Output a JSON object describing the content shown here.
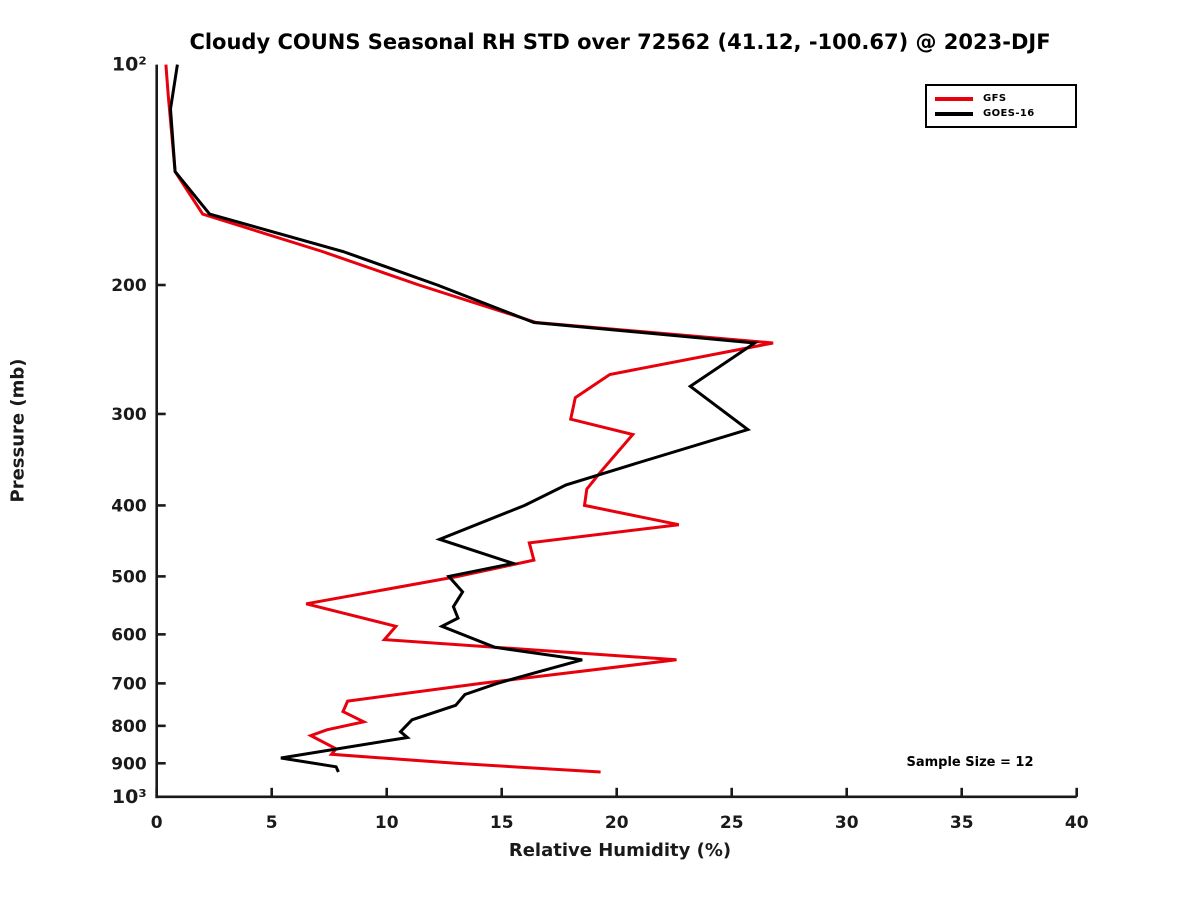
{
  "title": "Cloudy COUNS Seasonal RH STD over 72562 (41.12, -100.67) @ 2023-DJF",
  "annotation": "Sample Size = 12",
  "legend": {
    "entries": [
      {
        "label": "GFS",
        "color": "#e8000d"
      },
      {
        "label": "GOES-16",
        "color": "#000000"
      }
    ]
  },
  "chart_data": {
    "type": "line",
    "title": "Cloudy COUNS Seasonal RH STD over 72562 (41.12, -100.67) @ 2023-DJF",
    "xlabel": "Relative Humidity (%)",
    "ylabel": "Pressure (mb)",
    "xlim": [
      0,
      40
    ],
    "xticks": [
      0,
      5,
      10,
      15,
      20,
      25,
      30,
      35,
      40
    ],
    "ylim": [
      100,
      1000
    ],
    "yscale": "log",
    "yticks": [
      100,
      200,
      300,
      400,
      500,
      600,
      700,
      800,
      900,
      1000
    ],
    "ytick_labels": [
      "10²",
      "200",
      "300",
      "400",
      "500",
      "600",
      "700",
      "800",
      "900",
      "10³"
    ],
    "grid": false,
    "legend_position": "top-right",
    "annotation": "Sample Size = 12",
    "series": [
      {
        "name": "GFS",
        "color": "#e8000d",
        "points_format": "[pressure_mb, rh_percent]",
        "points": [
          [
            100,
            0.4
          ],
          [
            110,
            0.5
          ],
          [
            140,
            0.8
          ],
          [
            160,
            2.0
          ],
          [
            180,
            7.2
          ],
          [
            200,
            11.4
          ],
          [
            225,
            16.5
          ],
          [
            240,
            26.8
          ],
          [
            265,
            19.7
          ],
          [
            285,
            18.2
          ],
          [
            305,
            18.0
          ],
          [
            320,
            20.7
          ],
          [
            360,
            19.3
          ],
          [
            380,
            18.7
          ],
          [
            400,
            18.6
          ],
          [
            425,
            22.7
          ],
          [
            450,
            16.2
          ],
          [
            475,
            16.4
          ],
          [
            500,
            13.1
          ],
          [
            545,
            6.5
          ],
          [
            585,
            10.4
          ],
          [
            610,
            9.9
          ],
          [
            650,
            22.6
          ],
          [
            700,
            14.1
          ],
          [
            740,
            8.3
          ],
          [
            765,
            8.1
          ],
          [
            790,
            9.0
          ],
          [
            810,
            7.4
          ],
          [
            825,
            6.7
          ],
          [
            860,
            7.8
          ],
          [
            875,
            7.6
          ],
          [
            900,
            13.0
          ],
          [
            925,
            19.3
          ]
        ]
      },
      {
        "name": "GOES-16",
        "color": "#000000",
        "points_format": "[pressure_mb, rh_percent]",
        "points": [
          [
            100,
            0.9
          ],
          [
            115,
            0.6
          ],
          [
            140,
            0.8
          ],
          [
            160,
            2.3
          ],
          [
            180,
            8.1
          ],
          [
            200,
            12.2
          ],
          [
            225,
            16.4
          ],
          [
            240,
            26.0
          ],
          [
            275,
            23.2
          ],
          [
            315,
            25.7
          ],
          [
            350,
            20.9
          ],
          [
            375,
            17.8
          ],
          [
            400,
            16.0
          ],
          [
            445,
            12.3
          ],
          [
            480,
            15.5
          ],
          [
            500,
            12.7
          ],
          [
            525,
            13.3
          ],
          [
            550,
            12.9
          ],
          [
            570,
            13.1
          ],
          [
            585,
            12.4
          ],
          [
            625,
            14.7
          ],
          [
            650,
            18.5
          ],
          [
            675,
            16.6
          ],
          [
            700,
            14.8
          ],
          [
            725,
            13.4
          ],
          [
            750,
            13.0
          ],
          [
            785,
            11.1
          ],
          [
            815,
            10.6
          ],
          [
            830,
            10.9
          ],
          [
            885,
            5.4
          ],
          [
            910,
            7.8
          ],
          [
            925,
            7.9
          ]
        ]
      }
    ]
  }
}
